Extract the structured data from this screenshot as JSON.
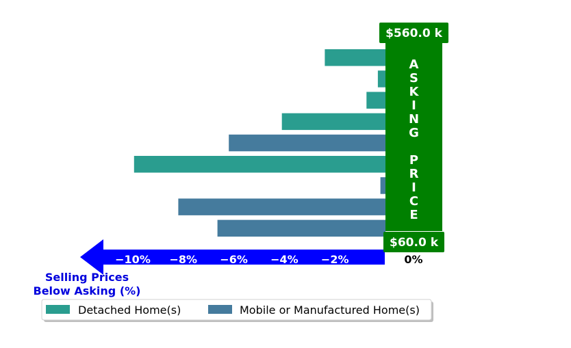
{
  "chart_data": {
    "type": "bar",
    "orientation": "horizontal",
    "x_unit": "%",
    "xlim": [
      -11,
      0
    ],
    "x_ticks": [
      -10,
      -8,
      -6,
      -4,
      -2,
      0
    ],
    "x_tick_labels": [
      "−10%",
      "−8%",
      "−6%",
      "−4%",
      "−2%",
      "0%"
    ],
    "axis_title_lines": [
      "Selling Prices",
      "Below Asking (%)"
    ],
    "series": [
      {
        "name": "Detached Home(s)",
        "color": "#2a9d8f"
      },
      {
        "name": "Mobile or Manufactured Home(s)",
        "color": "#457b9d"
      }
    ],
    "bars": [
      {
        "value": -2.4,
        "series": 0
      },
      {
        "value": -0.3,
        "series": 0
      },
      {
        "value": -0.75,
        "series": 0
      },
      {
        "value": -4.1,
        "series": 0
      },
      {
        "value": -6.2,
        "series": 1
      },
      {
        "value": -9.95,
        "series": 0
      },
      {
        "value": -0.2,
        "series": 1
      },
      {
        "value": -8.2,
        "series": 1
      },
      {
        "value": -6.65,
        "series": 1
      }
    ],
    "asking_price_label": "ASKING PRICE",
    "asking_price_letters": [
      "A",
      "S",
      "K",
      "I",
      "N",
      "G",
      "",
      "P",
      "R",
      "I",
      "C",
      "E"
    ],
    "price_top_label": "$560.0 k",
    "price_bottom_label": "$60.0 k",
    "legend_position": "bottom",
    "colors": {
      "asking_band": "#008000",
      "arrow": "#0000ff",
      "axis_title": "#0000dd"
    }
  }
}
